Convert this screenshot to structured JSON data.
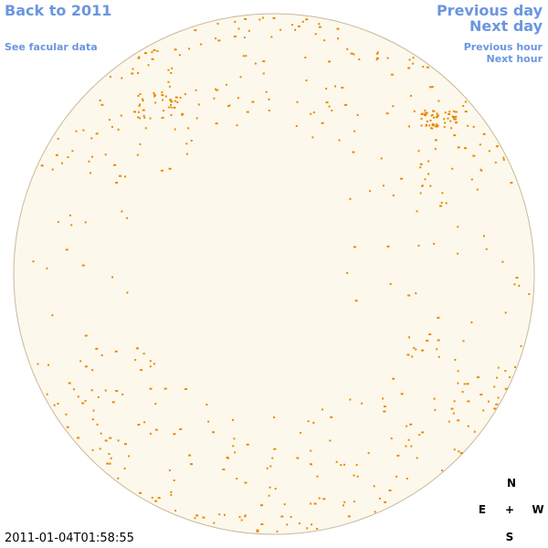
{
  "nav": {
    "back": "Back to 2011",
    "facular": "See facular data",
    "previous_day": "Previous day",
    "next_day": "Next day",
    "previous_hour": "Previous hour",
    "next_hour": "Next hour"
  },
  "timestamp": "2011-01-04T01:58:55",
  "compass": {
    "north": "N",
    "east": "E",
    "center": "+",
    "west": "W",
    "south": "S"
  }
}
